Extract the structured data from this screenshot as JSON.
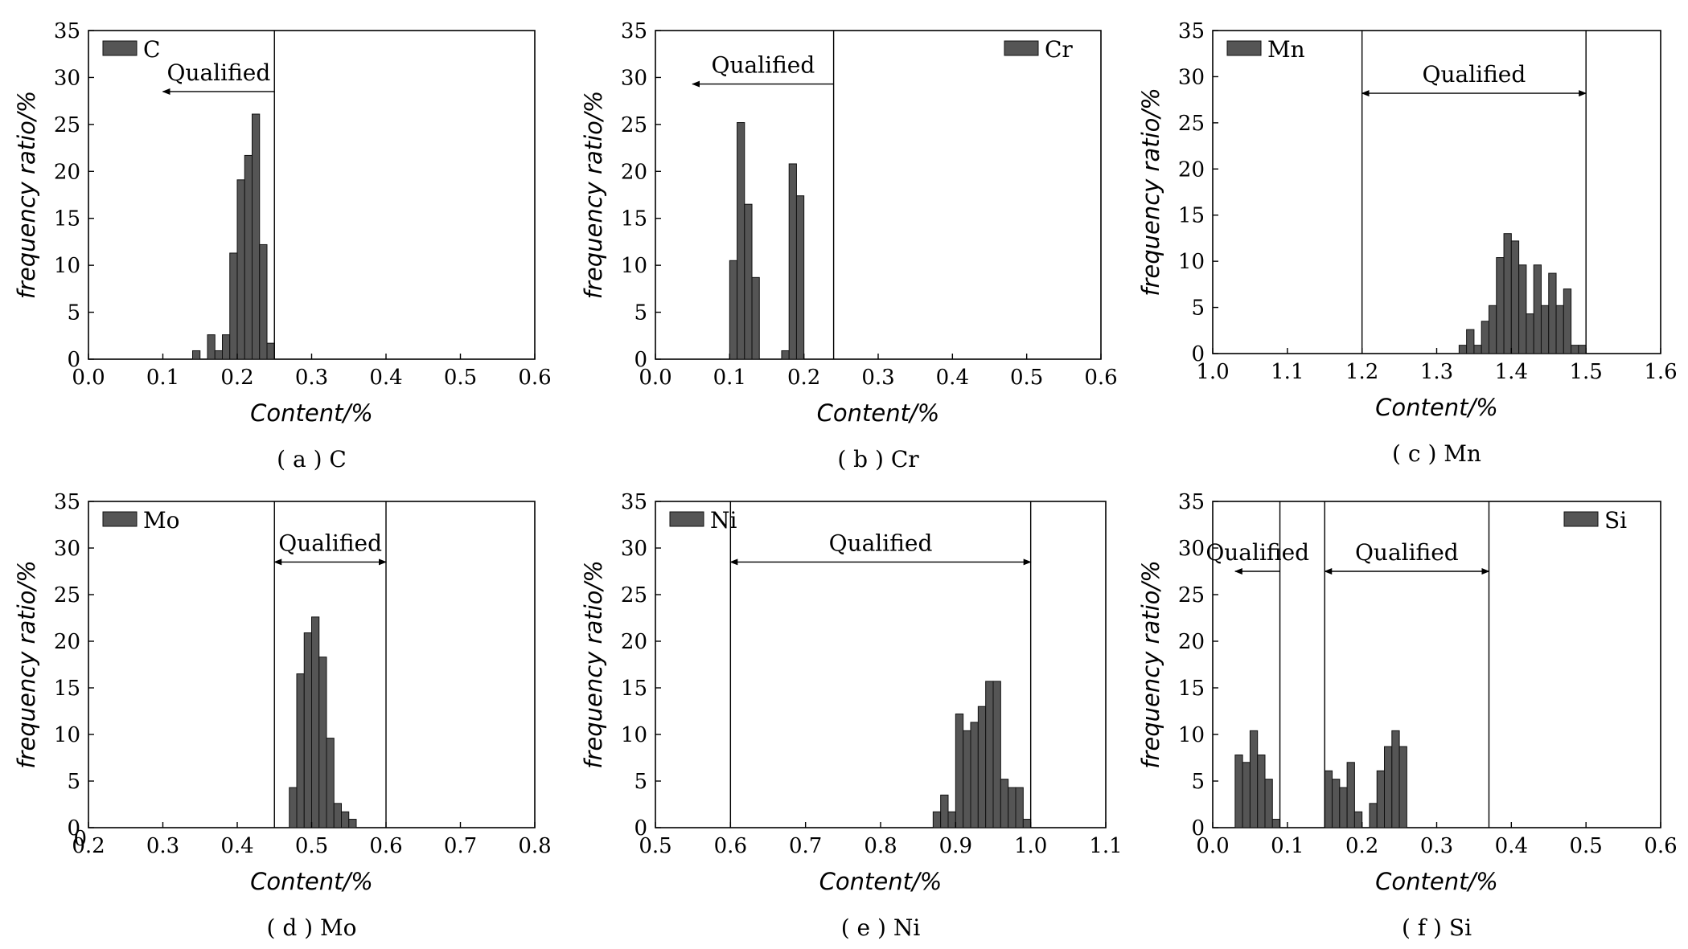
{
  "chart_data": [
    {
      "type": "bar",
      "caption": "( a ) C",
      "xlabel": "Content/%",
      "ylabel": "frequency ratio/%",
      "xlim": [
        0.0,
        0.6
      ],
      "ylim": [
        0,
        35
      ],
      "xticks": [
        "0.0",
        "0.1",
        "0.2",
        "0.3",
        "0.4",
        "0.5",
        "0.6"
      ],
      "yticks": [
        "0",
        "5",
        "10",
        "15",
        "20",
        "25",
        "30",
        "35"
      ],
      "legend": {
        "label": "C",
        "position": "top-left"
      },
      "bin_width": 0.01,
      "x": [
        0.145,
        0.165,
        0.175,
        0.185,
        0.195,
        0.205,
        0.215,
        0.225,
        0.235,
        0.245
      ],
      "values": [
        0.9,
        2.6,
        0.9,
        2.6,
        11.3,
        19.1,
        21.7,
        26.1,
        12.2,
        1.7
      ],
      "limit_lines": [
        0.25
      ],
      "qualified": {
        "label": "Qualified",
        "type": "left-arrow",
        "from": 0.25,
        "to": 0.1,
        "y": 28.5
      }
    },
    {
      "type": "bar",
      "caption": "( b ) Cr",
      "xlabel": "Content/%",
      "ylabel": "frequency ratio/%",
      "xlim": [
        0.0,
        0.6
      ],
      "ylim": [
        0,
        35
      ],
      "xticks": [
        "0.0",
        "0.1",
        "0.2",
        "0.3",
        "0.4",
        "0.5",
        "0.6"
      ],
      "yticks": [
        "0",
        "5",
        "10",
        "15",
        "20",
        "25",
        "30",
        "35"
      ],
      "legend": {
        "label": "Cr",
        "position": "top-right"
      },
      "bin_width": 0.01,
      "x": [
        0.105,
        0.115,
        0.125,
        0.135,
        0.175,
        0.185,
        0.195
      ],
      "values": [
        10.5,
        25.2,
        16.5,
        8.7,
        0.9,
        20.8,
        17.4
      ],
      "limit_lines": [
        0.24
      ],
      "qualified": {
        "label": "Qualified",
        "type": "left-arrow",
        "from": 0.24,
        "to": 0.05,
        "y": 29.3
      }
    },
    {
      "type": "bar",
      "caption": "( c ) Mn",
      "xlabel": "Content/%",
      "ylabel": "frequency ratio/%",
      "xlim": [
        1.0,
        1.6
      ],
      "ylim": [
        0,
        35
      ],
      "xticks": [
        "1.0",
        "1.1",
        "1.2",
        "1.3",
        "1.4",
        "1.5",
        "1.6"
      ],
      "yticks": [
        "0",
        "5",
        "10",
        "15",
        "20",
        "25",
        "30",
        "35"
      ],
      "legend": {
        "label": "Mn",
        "position": "top-left"
      },
      "bin_width": 0.01,
      "x": [
        1.335,
        1.345,
        1.355,
        1.365,
        1.375,
        1.385,
        1.395,
        1.405,
        1.415,
        1.425,
        1.435,
        1.445,
        1.455,
        1.465,
        1.475,
        1.485,
        1.495
      ],
      "values": [
        0.9,
        2.6,
        0.9,
        3.5,
        5.2,
        10.4,
        13.0,
        12.2,
        9.6,
        4.3,
        9.6,
        5.2,
        8.7,
        5.2,
        7.0,
        0.9,
        0.9
      ],
      "limit_lines": [
        1.2,
        1.5
      ],
      "qualified": {
        "label": "Qualified",
        "type": "double-arrow",
        "from": 1.2,
        "to": 1.5,
        "y": 28.2
      }
    },
    {
      "type": "bar",
      "caption": "( d ) Mo",
      "xlabel": "Content/%",
      "ylabel": "frequency ratio/%",
      "xlim": [
        0.2,
        0.8
      ],
      "ylim": [
        0,
        35
      ],
      "xticks": [
        "0.2",
        "0.3",
        "0.4",
        "0.5",
        "0.6",
        "0.7",
        "0.8"
      ],
      "x_origin_label": "0",
      "yticks": [
        "0",
        "5",
        "10",
        "15",
        "20",
        "25",
        "30",
        "35"
      ],
      "legend": {
        "label": "Mo",
        "position": "top-left"
      },
      "bin_width": 0.01,
      "x": [
        0.475,
        0.485,
        0.495,
        0.505,
        0.515,
        0.525,
        0.535,
        0.545,
        0.555
      ],
      "values": [
        4.3,
        16.5,
        20.9,
        22.6,
        18.3,
        9.6,
        2.6,
        1.7,
        0.9
      ],
      "limit_lines": [
        0.45,
        0.6
      ],
      "qualified": {
        "label": "Qualified",
        "type": "double-arrow",
        "from": 0.45,
        "to": 0.6,
        "y": 28.5
      }
    },
    {
      "type": "bar",
      "caption": "( e ) Ni",
      "xlabel": "Content/%",
      "ylabel": "frequency ratio/%",
      "xlim": [
        0.5,
        1.1
      ],
      "ylim": [
        0,
        35
      ],
      "xticks": [
        "0.5",
        "0.6",
        "0.7",
        "0.8",
        "0.9",
        "1.0",
        "1.1"
      ],
      "yticks": [
        "0",
        "5",
        "10",
        "15",
        "20",
        "25",
        "30",
        "35"
      ],
      "legend": {
        "label": "Ni",
        "position": "top-left"
      },
      "bin_width": 0.01,
      "x": [
        0.875,
        0.885,
        0.895,
        0.905,
        0.915,
        0.925,
        0.935,
        0.945,
        0.955,
        0.965,
        0.975,
        0.985,
        0.995
      ],
      "values": [
        1.7,
        3.5,
        1.7,
        12.2,
        10.4,
        11.3,
        13.0,
        15.7,
        15.7,
        5.2,
        4.3,
        4.3,
        0.9
      ],
      "limit_lines": [
        0.6,
        1.0
      ],
      "qualified": {
        "label": "Qualified",
        "type": "double-arrow",
        "from": 0.6,
        "to": 1.0,
        "y": 28.5
      }
    },
    {
      "type": "bar",
      "caption": "( f ) Si",
      "xlabel": "Content/%",
      "ylabel": "frequency ratio/%",
      "xlim": [
        0.0,
        0.6
      ],
      "ylim": [
        0,
        35
      ],
      "xticks": [
        "0.0",
        "0.1",
        "0.2",
        "0.3",
        "0.4",
        "0.5",
        "0.6"
      ],
      "yticks": [
        "0",
        "5",
        "10",
        "15",
        "20",
        "25",
        "30",
        "35"
      ],
      "legend": {
        "label": "Si",
        "position": "top-right"
      },
      "bin_width": 0.01,
      "x": [
        0.035,
        0.045,
        0.055,
        0.065,
        0.075,
        0.085,
        0.155,
        0.165,
        0.175,
        0.185,
        0.195,
        0.215,
        0.225,
        0.235,
        0.245,
        0.255
      ],
      "values": [
        7.8,
        7.0,
        10.4,
        7.8,
        5.2,
        0.9,
        6.1,
        5.2,
        4.3,
        7.0,
        1.7,
        2.6,
        6.1,
        8.7,
        10.4,
        8.7
      ],
      "limit_lines": [
        0.09,
        0.15,
        0.37
      ],
      "qualified": [
        {
          "label": "Qualified",
          "type": "left-arrow",
          "from": 0.09,
          "to": 0.03,
          "y": 27.5
        },
        {
          "label": "Qualified",
          "type": "double-arrow",
          "from": 0.15,
          "to": 0.37,
          "y": 27.5
        }
      ]
    }
  ],
  "colors": {
    "bar_fill": "#555555",
    "bar_stroke": "#111111",
    "axis": "#000000",
    "background": "#ffffff"
  }
}
